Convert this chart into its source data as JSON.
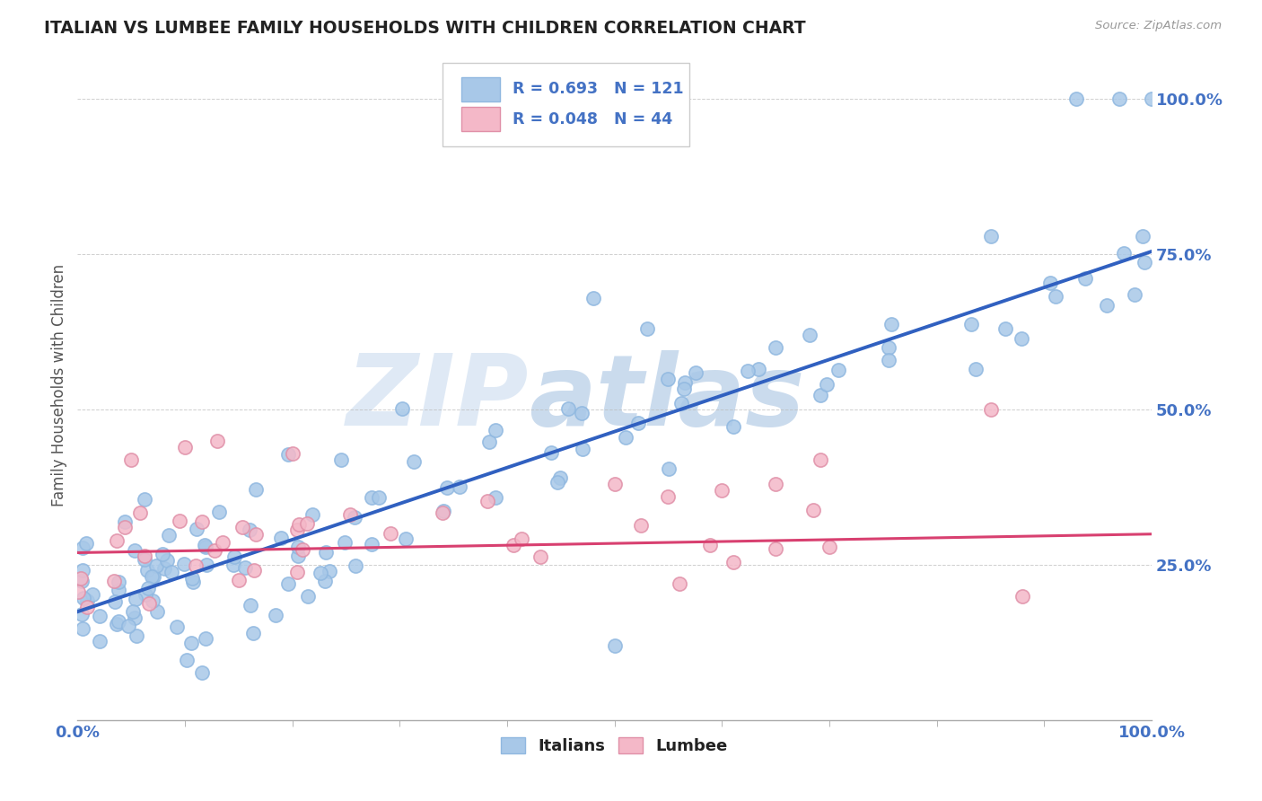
{
  "title": "ITALIAN VS LUMBEE FAMILY HOUSEHOLDS WITH CHILDREN CORRELATION CHART",
  "source": "Source: ZipAtlas.com",
  "ylabel": "Family Households with Children",
  "legend_italians": "Italians",
  "legend_lumbee": "Lumbee",
  "r_italian": 0.693,
  "n_italian": 121,
  "r_lumbee": 0.048,
  "n_lumbee": 44,
  "italian_color": "#A8C8E8",
  "lumbee_color": "#F4B8C8",
  "italian_line_color": "#3060C0",
  "lumbee_line_color": "#D84070",
  "bg_color": "#FFFFFF",
  "watermark": "ZIPatlas",
  "title_color": "#222222",
  "axis_label_color": "#4472C4",
  "legend_text_color": "#4472C4",
  "grid_color": "#BBBBBB",
  "xlim": [
    0.0,
    1.0
  ],
  "ylim": [
    0.0,
    1.08
  ]
}
